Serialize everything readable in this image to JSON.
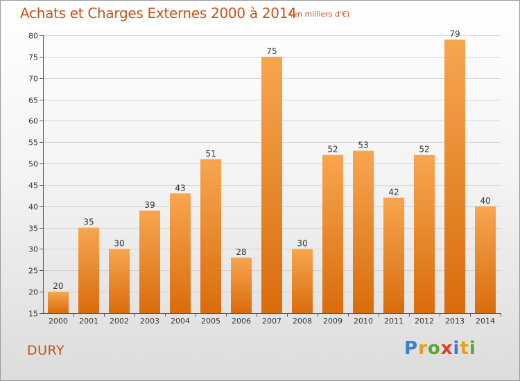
{
  "title": "Achats et Charges Externes 2000 à 2014",
  "subtitle": "(en milliers d'€)",
  "city": "DURY",
  "logo": {
    "letters": [
      "P",
      "r",
      "o",
      "x",
      "i",
      "t",
      "i"
    ],
    "colors": [
      "#3a7fd0",
      "#e8a014",
      "#5aa832",
      "#e03a2a",
      "#3a7fd0",
      "#e8a014",
      "#5aa832"
    ]
  },
  "colors": {
    "bar_top": "#f7a650",
    "bar_bottom": "#d96c0c",
    "title": "#c0531a"
  },
  "chart_data": {
    "type": "bar",
    "title": "Achats et Charges Externes 2000 à 2014",
    "subtitle": "(en milliers d'€)",
    "categories": [
      "2000",
      "2001",
      "2002",
      "2003",
      "2004",
      "2005",
      "2006",
      "2007",
      "2008",
      "2009",
      "2010",
      "2011",
      "2012",
      "2013",
      "2014"
    ],
    "values": [
      20,
      35,
      30,
      39,
      43,
      51,
      28,
      75,
      30,
      52,
      53,
      42,
      52,
      79,
      40
    ],
    "ylim": [
      15,
      80
    ],
    "yticks": [
      15,
      20,
      25,
      30,
      35,
      40,
      45,
      50,
      55,
      60,
      65,
      70,
      75,
      80
    ],
    "grid": true,
    "data_labels": true
  }
}
